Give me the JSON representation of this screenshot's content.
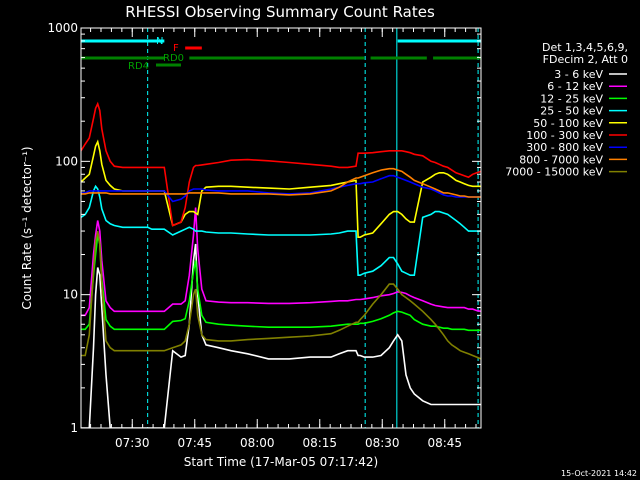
{
  "chart_data": {
    "type": "line",
    "title": "RHESSI Observing Summary Count Rates",
    "xlabel": "Start Time (17-Mar-05 07:17:42)",
    "ylabel": "Count Rate (s⁻¹ detector⁻¹)",
    "y_scale": "log",
    "ylim": [
      1,
      1000
    ],
    "xlim_minutes_after_start": [
      0,
      96
    ],
    "y_ticks": [
      "1",
      "10",
      "100",
      "1000"
    ],
    "x_ticks": [
      {
        "label": "07:30",
        "minutes": 12.3
      },
      {
        "label": "07:45",
        "minutes": 27.3
      },
      {
        "label": "08:00",
        "minutes": 42.3
      },
      {
        "label": "08:15",
        "minutes": 57.3
      },
      {
        "label": "08:30",
        "minutes": 72.3
      },
      {
        "label": "08:45",
        "minutes": 87.3
      }
    ],
    "legend_header": [
      "Det 1,3,4,5,6,9,",
      "FDecim 2, Att 0"
    ],
    "legend_position": "right",
    "x_sample_minutes": [
      0,
      1,
      2,
      3,
      3.5,
      4,
      4.5,
      5,
      6,
      7,
      8,
      10,
      12,
      14,
      15,
      16,
      17,
      18,
      19,
      20,
      22,
      24,
      25,
      26,
      27,
      27.5,
      28,
      29,
      30,
      33,
      36,
      40,
      45,
      50,
      55,
      60,
      62,
      64,
      66,
      66.5,
      67,
      68,
      70,
      72,
      74,
      75,
      76,
      77,
      78,
      79,
      80,
      82,
      84,
      85,
      86,
      87,
      88,
      89,
      90,
      91,
      92,
      93,
      94,
      95,
      96
    ],
    "series": [
      {
        "name": "3 - 6 keV",
        "color": "#ffffff",
        "values": [
          1,
          1,
          1,
          4,
          10,
          16,
          14,
          8,
          2.5,
          1,
          1,
          1,
          1,
          1,
          1,
          1,
          1,
          1,
          1,
          1,
          3.8,
          3.4,
          3.5,
          6,
          18,
          24,
          10,
          5,
          4.2,
          4.0,
          3.8,
          3.6,
          3.3,
          3.3,
          3.4,
          3.4,
          3.6,
          3.8,
          3.8,
          3.5,
          3.5,
          3.4,
          3.4,
          3.5,
          4,
          4.5,
          5,
          4.5,
          2.5,
          2,
          1.8,
          1.6,
          1.5,
          1.5,
          1.5,
          1.5,
          1.5,
          1.5,
          1.5,
          1.5,
          1.5,
          1.5,
          1.5,
          1.5,
          1.5
        ]
      },
      {
        "name": "6 - 12 keV",
        "color": "#ff00ff",
        "values": [
          7,
          7,
          8,
          20,
          28,
          36,
          30,
          18,
          9,
          8,
          7.5,
          7.5,
          7.5,
          7.5,
          7.5,
          7.5,
          7.5,
          7.5,
          7.5,
          7.5,
          8.5,
          8.5,
          9,
          14,
          28,
          45,
          22,
          11,
          9,
          8.8,
          8.7,
          8.7,
          8.6,
          8.6,
          8.7,
          8.9,
          9,
          9,
          9.2,
          9.2,
          9.2,
          9.3,
          9.5,
          9.8,
          10,
          10.2,
          10.5,
          10.4,
          10.2,
          9.8,
          9.5,
          9,
          8.5,
          8.3,
          8.2,
          8.1,
          8,
          8,
          8,
          8,
          8,
          7.8,
          7.8,
          7.6,
          7.5
        ]
      },
      {
        "name": "12 - 25 keV",
        "color": "#00ff00",
        "values": [
          5.5,
          5.5,
          6,
          14,
          20,
          28,
          24,
          13,
          6.5,
          5.8,
          5.5,
          5.5,
          5.5,
          5.5,
          5.5,
          5.5,
          5.5,
          5.5,
          5.5,
          5.5,
          6.3,
          6.4,
          6.6,
          9,
          15,
          18,
          11,
          7,
          6.2,
          6,
          5.9,
          5.8,
          5.7,
          5.7,
          5.7,
          5.8,
          5.9,
          6,
          6,
          6,
          6.1,
          6.1,
          6.3,
          6.6,
          7,
          7.3,
          7.5,
          7.4,
          7.2,
          7,
          6.5,
          6,
          5.8,
          5.8,
          5.7,
          5.6,
          5.6,
          5.5,
          5.5,
          5.5,
          5.5,
          5.4,
          5.4,
          5.4,
          5.4
        ]
      },
      {
        "name": "25 - 50 keV",
        "color": "#00ffff",
        "values": [
          38,
          40,
          45,
          60,
          65,
          62,
          54,
          44,
          36,
          34,
          33,
          32,
          32,
          32,
          32,
          32,
          31,
          31,
          31,
          31,
          28,
          30,
          31,
          32,
          31,
          30,
          30,
          30,
          29.5,
          29,
          29,
          28.5,
          28,
          28,
          28,
          28.5,
          29,
          30,
          30,
          14,
          14,
          14.5,
          15,
          16.5,
          19,
          19,
          17,
          15,
          14.5,
          14,
          14,
          38,
          40,
          42,
          42,
          41,
          40,
          38,
          36,
          34,
          32,
          30,
          30,
          30,
          30
        ]
      },
      {
        "name": "50 - 100 keV",
        "color": "#ffff00",
        "values": [
          70,
          75,
          80,
          110,
          130,
          140,
          120,
          95,
          72,
          66,
          62,
          60,
          60,
          60,
          60,
          60,
          60,
          60,
          60,
          60,
          33,
          35,
          40,
          42,
          42,
          41,
          40,
          60,
          64,
          65,
          65,
          64,
          63,
          62,
          64,
          66,
          68,
          70,
          72,
          27,
          27,
          28,
          29,
          34,
          40,
          42,
          42,
          40,
          37,
          35,
          35,
          70,
          76,
          80,
          82,
          82,
          80,
          76,
          72,
          70,
          68,
          66,
          65,
          65,
          65
        ]
      },
      {
        "name": "100 - 300 keV",
        "color": "#ff0000",
        "values": [
          120,
          135,
          150,
          210,
          250,
          270,
          240,
          175,
          120,
          100,
          92,
          90,
          90,
          90,
          90,
          90,
          90,
          90,
          90,
          90,
          33,
          35,
          45,
          70,
          90,
          93,
          93,
          94,
          95,
          98,
          102,
          103,
          101,
          98,
          95,
          92,
          90,
          90,
          92,
          115,
          115,
          115,
          116,
          118,
          120,
          120,
          120,
          120,
          118,
          116,
          113,
          110,
          100,
          98,
          95,
          92,
          90,
          86,
          82,
          80,
          78,
          76,
          80,
          82,
          84
        ]
      },
      {
        "name": "300 - 800 keV",
        "color": "#0000ff",
        "values": [
          58,
          58,
          60,
          60,
          60,
          60,
          60,
          60,
          60,
          60,
          60,
          60,
          60,
          60,
          60,
          60,
          60,
          60,
          60,
          60,
          50,
          52,
          55,
          60,
          62,
          62,
          62,
          62,
          61,
          60,
          60,
          60,
          58,
          57,
          58,
          62,
          64,
          66,
          68,
          68,
          68,
          69,
          70,
          74,
          78,
          78,
          76,
          74,
          72,
          70,
          68,
          64,
          62,
          60,
          58,
          56,
          55,
          55,
          54,
          54,
          54,
          54,
          54,
          54,
          54
        ]
      },
      {
        "name": "800 - 7000 keV",
        "color": "#ff8000",
        "values": [
          57,
          57,
          58,
          58,
          58,
          58,
          58,
          58,
          58,
          57,
          57,
          57,
          57,
          57,
          57,
          57,
          57,
          57,
          57,
          57,
          57,
          57,
          57,
          58,
          58,
          58,
          58,
          58,
          58,
          58,
          57,
          57,
          57,
          56,
          57,
          60,
          64,
          70,
          75,
          75,
          76,
          78,
          82,
          86,
          88,
          88,
          86,
          84,
          80,
          76,
          72,
          68,
          64,
          62,
          60,
          58,
          58,
          57,
          56,
          55,
          55,
          54,
          54,
          54,
          54
        ]
      },
      {
        "name": "7000 - 15000 keV",
        "color": "#808000",
        "values": [
          3.5,
          3.5,
          5,
          15,
          25,
          30,
          24,
          12,
          4.5,
          4,
          3.8,
          3.8,
          3.8,
          3.8,
          3.8,
          3.8,
          3.8,
          3.8,
          3.8,
          3.8,
          4,
          4.2,
          4.5,
          6,
          10,
          11,
          7,
          5,
          4.6,
          4.5,
          4.5,
          4.6,
          4.7,
          4.8,
          4.9,
          5.1,
          5.4,
          5.8,
          6.2,
          6.2,
          6.5,
          7,
          8.5,
          10,
          12,
          12,
          11,
          10,
          9.5,
          9,
          8.5,
          7.5,
          6.5,
          6,
          5.5,
          5,
          4.5,
          4.2,
          4,
          3.8,
          3.7,
          3.6,
          3.5,
          3.4,
          3.3
        ]
      }
    ],
    "annotations": [
      {
        "label": "N",
        "color": "#00ffff"
      },
      {
        "label": "F",
        "color": "#ff0000"
      },
      {
        "label": "RD0",
        "color": "#00a000"
      },
      {
        "label": "RD4",
        "color": "#00a000"
      }
    ],
    "state_bars": [
      {
        "label": "N",
        "color": "#00ffff",
        "intervals": [
          [
            0,
            20
          ],
          [
            76,
            96
          ]
        ]
      },
      {
        "label": "F",
        "color": "#ff0000",
        "intervals": [
          [
            25,
            29
          ]
        ]
      },
      {
        "label": "RD0",
        "color": "#008000",
        "intervals": [
          [
            0,
            20
          ],
          [
            26,
            68
          ],
          [
            69.5,
            83
          ],
          [
            84.5,
            96
          ]
        ]
      },
      {
        "label": "RD4",
        "color": "#008000",
        "intervals": [
          [
            18,
            24
          ]
        ]
      }
    ],
    "dashed_verticals_minutes": [
      16,
      68.2,
      95.3
    ],
    "solid_verticals_minutes": [
      75.8
    ],
    "grid": false
  },
  "timestamp": "15-Oct-2021 14:42"
}
